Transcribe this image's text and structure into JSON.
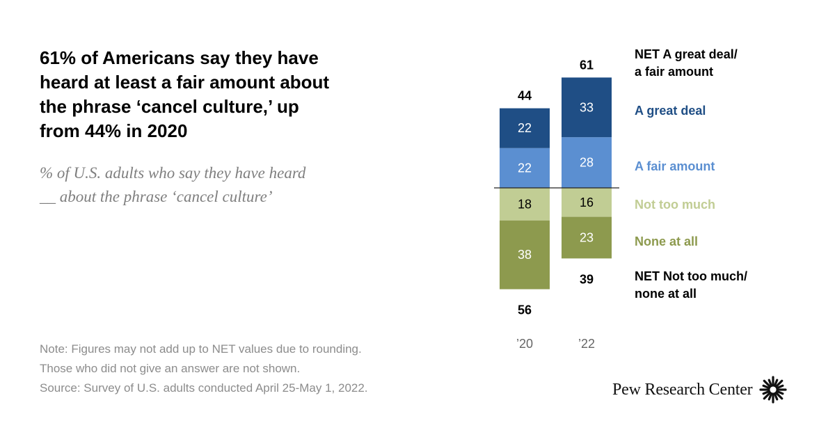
{
  "title": "61% of Americans say they have\nheard at least a fair amount about\nthe phrase ‘cancel culture,’ up\nfrom 44% in 2020",
  "subtitle": "% of U.S. adults who say they have heard\n__ about the phrase ‘cancel culture’",
  "notes": [
    "Note: Figures may not add up to NET values due to rounding.",
    "Those who did not give an answer are not shown.",
    "Source: Survey of U.S. adults conducted April 25-May 1, 2022."
  ],
  "brand": "Pew Research Center",
  "colors": {
    "great_deal": "#1f4e85",
    "fair_amount": "#5b8fd1",
    "not_too_much": "#c1cd94",
    "none_at_all": "#8d9a4e",
    "text_dark": "#000000",
    "text_light": "#ffffff"
  },
  "chart_data": {
    "type": "bar",
    "stacked": "diverging",
    "categories": [
      "’20",
      "’22"
    ],
    "series": [
      {
        "name": "A great deal",
        "side": "above",
        "values": [
          22,
          33
        ]
      },
      {
        "name": "A fair amount",
        "side": "above",
        "values": [
          22,
          28
        ]
      },
      {
        "name": "Not too much",
        "side": "below",
        "values": [
          18,
          16
        ]
      },
      {
        "name": "None at all",
        "side": "below",
        "values": [
          38,
          23
        ]
      }
    ],
    "net_above": {
      "label": "NET A great deal/\na fair amount",
      "values": [
        44,
        61
      ]
    },
    "net_below": {
      "label": "NET Not too much/\nnone at all",
      "values": [
        56,
        39
      ]
    },
    "title": "",
    "xlabel": "",
    "ylabel": ""
  }
}
